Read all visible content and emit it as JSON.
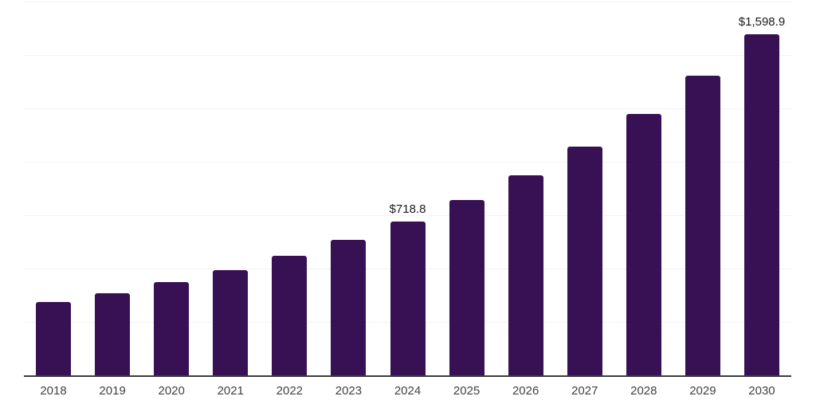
{
  "chart_data": {
    "type": "bar",
    "categories": [
      "2018",
      "2019",
      "2020",
      "2021",
      "2022",
      "2023",
      "2024",
      "2025",
      "2026",
      "2027",
      "2028",
      "2029",
      "2030"
    ],
    "values": [
      343,
      384,
      436,
      492,
      559,
      634,
      718.8,
      820,
      936,
      1070,
      1223,
      1402,
      1598.9
    ],
    "data_labels": [
      {
        "index": 6,
        "text": "$718.8"
      },
      {
        "index": 12,
        "text": "$1,598.9"
      }
    ],
    "title": "",
    "xlabel": "",
    "ylabel": "",
    "ylim": [
      0,
      1750
    ],
    "gridline_step": 250,
    "grid": "horizontal",
    "legend": "none",
    "colors": {
      "bar": "#371154",
      "gridline": "#f4f2f5",
      "axis_line": "#3d3d3d",
      "tick_label": "#424242",
      "value_label": "#1a1a1a",
      "background": "#ffffff"
    }
  }
}
